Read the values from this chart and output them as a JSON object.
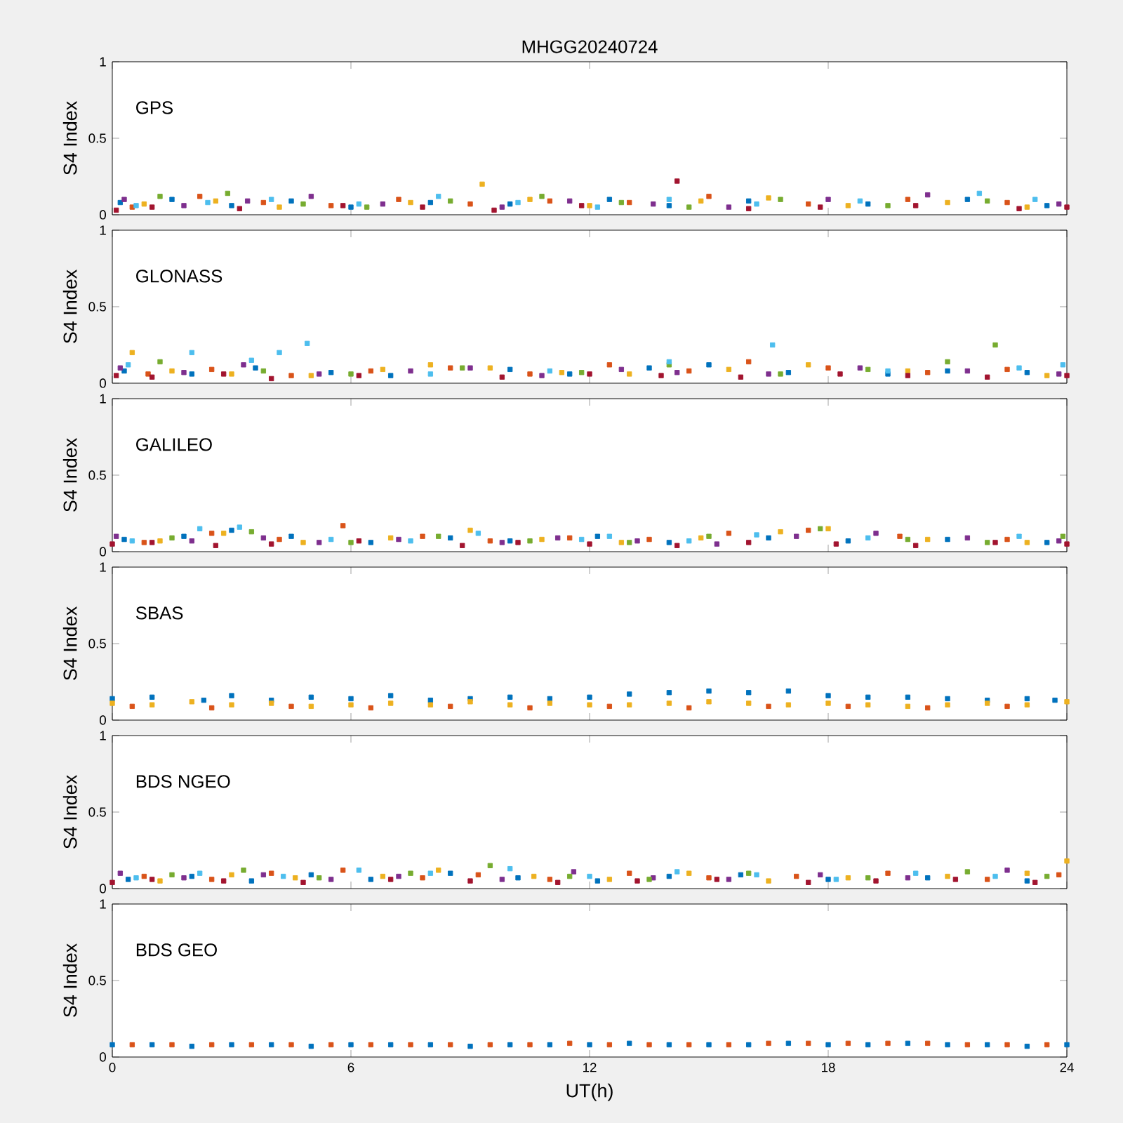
{
  "chart_data": [
    {
      "type": "scatter",
      "title": "MHGG20240724",
      "annotations": [
        "GPS"
      ],
      "ylabel": "S4 Index",
      "xlim": [
        0,
        24
      ],
      "ylim": [
        0,
        1
      ],
      "xticks": [
        0,
        6,
        12,
        18,
        24
      ],
      "yticks": [
        0,
        0.5,
        1
      ],
      "tick_labels": "y",
      "marker": "square",
      "series": [
        {
          "color": "#0072bd",
          "x": [
            0.2,
            1.5,
            3,
            4.5,
            6,
            8,
            10,
            12.5,
            14,
            16,
            19,
            21.5,
            23.5
          ],
          "values": [
            0.08,
            0.1,
            0.06,
            0.09,
            0.05,
            0.08,
            0.07,
            0.1,
            0.06,
            0.09,
            0.07,
            0.1,
            0.06
          ]
        },
        {
          "color": "#d95319",
          "x": [
            0.5,
            2.2,
            3.8,
            5.5,
            7.2,
            9,
            11,
            13,
            15,
            17.5,
            20,
            22.5
          ],
          "values": [
            0.05,
            0.12,
            0.08,
            0.06,
            0.1,
            0.07,
            0.09,
            0.08,
            0.12,
            0.07,
            0.1,
            0.08
          ]
        },
        {
          "color": "#edb120",
          "x": [
            0.8,
            2.6,
            4.2,
            7.5,
            9.3,
            10.5,
            12,
            14.8,
            16.5,
            18.5,
            21,
            23
          ],
          "values": [
            0.07,
            0.09,
            0.05,
            0.08,
            0.2,
            0.1,
            0.06,
            0.09,
            0.11,
            0.06,
            0.08,
            0.05
          ]
        },
        {
          "color": "#7e2f8e",
          "x": [
            0.3,
            1.8,
            3.4,
            5,
            6.8,
            9.8,
            11.5,
            13.6,
            15.5,
            18,
            20.5,
            23.8
          ],
          "values": [
            0.1,
            0.06,
            0.09,
            0.12,
            0.07,
            0.05,
            0.09,
            0.07,
            0.05,
            0.1,
            0.13,
            0.07
          ]
        },
        {
          "color": "#77ac30",
          "x": [
            1.2,
            2.9,
            4.8,
            6.4,
            8.5,
            10.8,
            12.8,
            14.5,
            16.8,
            19.5,
            22
          ],
          "values": [
            0.12,
            0.14,
            0.07,
            0.05,
            0.09,
            0.12,
            0.08,
            0.05,
            0.1,
            0.06,
            0.09
          ]
        },
        {
          "color": "#4dbeee",
          "x": [
            0.6,
            2.4,
            4,
            6.2,
            8.2,
            10.2,
            12.2,
            14,
            16.2,
            18.8,
            21.8,
            23.2
          ],
          "values": [
            0.06,
            0.08,
            0.1,
            0.07,
            0.12,
            0.08,
            0.05,
            0.1,
            0.07,
            0.09,
            0.14,
            0.1
          ]
        },
        {
          "color": "#a2142f",
          "x": [
            0.1,
            1,
            3.2,
            5.8,
            7.8,
            9.6,
            11.8,
            14.2,
            16,
            17.8,
            20.2,
            22.8,
            24
          ],
          "values": [
            0.03,
            0.05,
            0.04,
            0.06,
            0.05,
            0.03,
            0.06,
            0.22,
            0.04,
            0.05,
            0.06,
            0.04,
            0.05
          ]
        }
      ]
    },
    {
      "type": "scatter",
      "annotations": [
        "GLONASS"
      ],
      "ylabel": "S4 Index",
      "xlim": [
        0,
        24
      ],
      "ylim": [
        0,
        1
      ],
      "xticks": [
        0,
        6,
        12,
        18,
        24
      ],
      "yticks": [
        0,
        0.5,
        1
      ],
      "tick_labels": "y",
      "marker": "square",
      "series": [
        {
          "color": "#0072bd",
          "x": [
            0.3,
            2,
            3.6,
            5.5,
            7,
            10,
            11.5,
            13.5,
            15,
            17,
            19.5,
            21,
            23
          ],
          "values": [
            0.08,
            0.06,
            0.1,
            0.07,
            0.05,
            0.09,
            0.06,
            0.1,
            0.12,
            0.07,
            0.06,
            0.08,
            0.07
          ]
        },
        {
          "color": "#d95319",
          "x": [
            0.9,
            2.5,
            4.5,
            6.5,
            8.5,
            10.5,
            12.5,
            14.5,
            16,
            18,
            20.5,
            22.5
          ],
          "values": [
            0.06,
            0.09,
            0.05,
            0.08,
            0.1,
            0.06,
            0.12,
            0.08,
            0.14,
            0.1,
            0.07,
            0.09
          ]
        },
        {
          "color": "#edb120",
          "x": [
            0.5,
            1.5,
            3,
            5,
            6.8,
            8,
            9.5,
            11.3,
            13,
            15.5,
            17.5,
            20,
            23.5
          ],
          "values": [
            0.2,
            0.08,
            0.06,
            0.05,
            0.09,
            0.12,
            0.1,
            0.07,
            0.06,
            0.09,
            0.12,
            0.08,
            0.05
          ]
        },
        {
          "color": "#7e2f8e",
          "x": [
            0.2,
            1.8,
            3.3,
            5.2,
            7.5,
            9,
            10.8,
            12.8,
            14.2,
            16.5,
            18.8,
            21.5,
            23.8
          ],
          "values": [
            0.1,
            0.07,
            0.12,
            0.06,
            0.08,
            0.1,
            0.05,
            0.09,
            0.07,
            0.06,
            0.1,
            0.08,
            0.06
          ]
        },
        {
          "color": "#77ac30",
          "x": [
            1.2,
            3.8,
            6,
            8.8,
            11.8,
            14,
            16.8,
            19,
            21,
            22.2
          ],
          "values": [
            0.14,
            0.08,
            0.06,
            0.1,
            0.07,
            0.12,
            0.06,
            0.09,
            0.14,
            0.25
          ]
        },
        {
          "color": "#4dbeee",
          "x": [
            0.4,
            2,
            3.5,
            4.2,
            4.9,
            8,
            11,
            14,
            16.6,
            19.5,
            22.8,
            23.9
          ],
          "values": [
            0.12,
            0.2,
            0.15,
            0.2,
            0.26,
            0.06,
            0.08,
            0.14,
            0.25,
            0.08,
            0.1,
            0.12
          ]
        },
        {
          "color": "#a2142f",
          "x": [
            0.1,
            1,
            2.8,
            4,
            6.2,
            9.8,
            12,
            13.8,
            15.8,
            18.3,
            20,
            22,
            24
          ],
          "values": [
            0.05,
            0.04,
            0.06,
            0.03,
            0.05,
            0.04,
            0.06,
            0.05,
            0.04,
            0.06,
            0.05,
            0.04,
            0.05
          ]
        }
      ]
    },
    {
      "type": "scatter",
      "annotations": [
        "GALILEO"
      ],
      "ylabel": "S4 Index",
      "xlim": [
        0,
        24
      ],
      "ylim": [
        0,
        1
      ],
      "xticks": [
        0,
        6,
        12,
        18,
        24
      ],
      "yticks": [
        0,
        0.5,
        1
      ],
      "tick_labels": "y",
      "marker": "square",
      "series": [
        {
          "color": "#0072bd",
          "x": [
            0.3,
            1.8,
            3,
            4.5,
            6.5,
            8.5,
            10,
            12.2,
            14,
            16.5,
            18.5,
            21,
            23.5
          ],
          "values": [
            0.08,
            0.1,
            0.14,
            0.1,
            0.06,
            0.09,
            0.07,
            0.1,
            0.06,
            0.09,
            0.07,
            0.08,
            0.06
          ]
        },
        {
          "color": "#d95319",
          "x": [
            0.8,
            2.5,
            4.2,
            5.8,
            7.8,
            9.5,
            11.5,
            13.5,
            15.5,
            17.5,
            19.8,
            22.5
          ],
          "values": [
            0.06,
            0.12,
            0.08,
            0.17,
            0.1,
            0.07,
            0.09,
            0.08,
            0.12,
            0.14,
            0.1,
            0.08
          ]
        },
        {
          "color": "#edb120",
          "x": [
            1.2,
            2.8,
            4.8,
            7,
            9,
            10.8,
            12.8,
            14.8,
            16.8,
            18,
            20.5,
            23
          ],
          "values": [
            0.07,
            0.12,
            0.06,
            0.09,
            0.14,
            0.08,
            0.06,
            0.09,
            0.13,
            0.15,
            0.08,
            0.06
          ]
        },
        {
          "color": "#7e2f8e",
          "x": [
            0.1,
            2,
            3.8,
            5.2,
            7.2,
            9.8,
            11.2,
            13.2,
            15.2,
            17.2,
            19.2,
            21.5,
            23.8
          ],
          "values": [
            0.1,
            0.07,
            0.09,
            0.06,
            0.08,
            0.06,
            0.09,
            0.07,
            0.05,
            0.1,
            0.12,
            0.09,
            0.07
          ]
        },
        {
          "color": "#77ac30",
          "x": [
            1.5,
            3.5,
            6,
            8.2,
            10.5,
            13,
            15,
            17.8,
            20,
            22,
            23.9
          ],
          "values": [
            0.09,
            0.13,
            0.06,
            0.1,
            0.07,
            0.06,
            0.1,
            0.15,
            0.08,
            0.06,
            0.1
          ]
        },
        {
          "color": "#4dbeee",
          "x": [
            0.5,
            2.2,
            3.2,
            5.5,
            7.5,
            9.2,
            11.8,
            12.5,
            14.5,
            16.2,
            19,
            22.8
          ],
          "values": [
            0.07,
            0.15,
            0.16,
            0.08,
            0.07,
            0.12,
            0.08,
            0.1,
            0.07,
            0.11,
            0.09,
            0.1
          ]
        },
        {
          "color": "#a2142f",
          "x": [
            0,
            1,
            2.6,
            4,
            6.2,
            8.8,
            10.2,
            12,
            14.2,
            16,
            18.2,
            20.2,
            22.2,
            24
          ],
          "values": [
            0.05,
            0.06,
            0.04,
            0.05,
            0.07,
            0.04,
            0.06,
            0.05,
            0.04,
            0.06,
            0.05,
            0.04,
            0.06,
            0.05
          ]
        }
      ]
    },
    {
      "type": "scatter",
      "annotations": [
        "SBAS"
      ],
      "ylabel": "S4 Index",
      "xlim": [
        0,
        24
      ],
      "ylim": [
        0,
        1
      ],
      "xticks": [
        0,
        6,
        12,
        18,
        24
      ],
      "yticks": [
        0,
        0.5,
        1
      ],
      "tick_labels": "y",
      "marker": "square",
      "series": [
        {
          "color": "#0072bd",
          "x": [
            0,
            1,
            2.3,
            3,
            4,
            5,
            6,
            7,
            8,
            9,
            10,
            11,
            12,
            13,
            14,
            15,
            16,
            17,
            18,
            19,
            20,
            21,
            22,
            23,
            23.7
          ],
          "values": [
            0.14,
            0.15,
            0.13,
            0.16,
            0.13,
            0.15,
            0.14,
            0.16,
            0.13,
            0.14,
            0.15,
            0.14,
            0.15,
            0.17,
            0.18,
            0.19,
            0.18,
            0.19,
            0.16,
            0.15,
            0.15,
            0.14,
            0.13,
            0.14,
            0.13
          ]
        },
        {
          "color": "#edb120",
          "x": [
            0,
            1,
            2,
            3,
            4,
            5,
            6,
            7,
            8,
            9,
            10,
            11,
            12,
            13,
            14,
            15,
            16,
            17,
            18,
            19,
            20,
            21,
            22,
            23,
            24
          ],
          "values": [
            0.11,
            0.1,
            0.12,
            0.1,
            0.11,
            0.09,
            0.1,
            0.11,
            0.1,
            0.12,
            0.1,
            0.11,
            0.1,
            0.1,
            0.11,
            0.12,
            0.11,
            0.1,
            0.11,
            0.1,
            0.09,
            0.1,
            0.11,
            0.1,
            0.12
          ]
        },
        {
          "color": "#d95319",
          "x": [
            0.5,
            2.5,
            4.5,
            6.5,
            8.5,
            10.5,
            12.5,
            14.5,
            16.5,
            18.5,
            20.5,
            22.5
          ],
          "values": [
            0.09,
            0.08,
            0.09,
            0.08,
            0.09,
            0.08,
            0.09,
            0.08,
            0.09,
            0.09,
            0.08,
            0.09
          ]
        }
      ]
    },
    {
      "type": "scatter",
      "annotations": [
        "BDS NGEO"
      ],
      "ylabel": "S4 Index",
      "xlim": [
        0,
        24
      ],
      "ylim": [
        0,
        1
      ],
      "xticks": [
        0,
        6,
        12,
        18,
        24
      ],
      "yticks": [
        0,
        0.5,
        1
      ],
      "tick_labels": "y",
      "marker": "square",
      "series": [
        {
          "color": "#0072bd",
          "x": [
            0.4,
            2,
            3.5,
            5,
            6.5,
            8.5,
            10.2,
            12.2,
            14,
            15.8,
            18,
            20.5,
            23
          ],
          "values": [
            0.06,
            0.08,
            0.05,
            0.09,
            0.06,
            0.1,
            0.07,
            0.05,
            0.08,
            0.09,
            0.06,
            0.07,
            0.05
          ]
        },
        {
          "color": "#d95319",
          "x": [
            0.8,
            2.5,
            4,
            5.8,
            7.8,
            9.2,
            11,
            13,
            15,
            17.2,
            19.5,
            22,
            23.8
          ],
          "values": [
            0.08,
            0.06,
            0.1,
            0.12,
            0.07,
            0.09,
            0.06,
            0.1,
            0.07,
            0.08,
            0.1,
            0.06,
            0.09
          ]
        },
        {
          "color": "#edb120",
          "x": [
            1.2,
            3,
            4.6,
            6.8,
            8.2,
            10.6,
            12.5,
            14.5,
            16.5,
            18.5,
            21,
            23,
            24
          ],
          "values": [
            0.05,
            0.09,
            0.07,
            0.08,
            0.12,
            0.08,
            0.06,
            0.1,
            0.05,
            0.07,
            0.08,
            0.1,
            0.18
          ]
        },
        {
          "color": "#7e2f8e",
          "x": [
            0.2,
            1.8,
            3.8,
            5.5,
            7.2,
            9.8,
            11.6,
            13.6,
            15.5,
            17.8,
            20,
            22.5
          ],
          "values": [
            0.1,
            0.07,
            0.09,
            0.06,
            0.08,
            0.06,
            0.11,
            0.07,
            0.06,
            0.09,
            0.07,
            0.12
          ]
        },
        {
          "color": "#77ac30",
          "x": [
            1.5,
            3.3,
            5.2,
            7.5,
            9.5,
            11.5,
            13.5,
            16,
            19,
            21.5,
            23.5
          ],
          "values": [
            0.09,
            0.12,
            0.07,
            0.1,
            0.15,
            0.08,
            0.06,
            0.1,
            0.07,
            0.11,
            0.08
          ]
        },
        {
          "color": "#4dbeee",
          "x": [
            0.6,
            2.2,
            4.3,
            6.2,
            8,
            10,
            12,
            14.2,
            16.2,
            18.2,
            20.2,
            22.2
          ],
          "values": [
            0.07,
            0.1,
            0.08,
            0.12,
            0.1,
            0.13,
            0.08,
            0.11,
            0.09,
            0.06,
            0.1,
            0.08
          ]
        },
        {
          "color": "#a2142f",
          "x": [
            0,
            1,
            2.8,
            4.8,
            7,
            9,
            11.2,
            13.2,
            15.2,
            17.5,
            19.2,
            21.2,
            23.2
          ],
          "values": [
            0.04,
            0.06,
            0.05,
            0.04,
            0.06,
            0.05,
            0.04,
            0.05,
            0.06,
            0.04,
            0.05,
            0.06,
            0.04
          ]
        }
      ]
    },
    {
      "type": "scatter",
      "annotations": [
        "BDS GEO"
      ],
      "xlabel": "UT(h)",
      "ylabel": "S4 Index",
      "xlim": [
        0,
        24
      ],
      "ylim": [
        0,
        1
      ],
      "xticks": [
        0,
        6,
        12,
        18,
        24
      ],
      "yticks": [
        0,
        0.5,
        1
      ],
      "marker": "square",
      "series": [
        {
          "color": "#0072bd",
          "x": [
            0,
            1,
            2,
            3,
            4,
            5,
            6,
            7,
            8,
            9,
            10,
            11,
            12,
            13,
            14,
            15,
            16,
            17,
            18,
            19,
            20,
            21,
            22,
            23,
            24
          ],
          "values": [
            0.08,
            0.08,
            0.07,
            0.08,
            0.08,
            0.07,
            0.08,
            0.08,
            0.08,
            0.07,
            0.08,
            0.08,
            0.08,
            0.09,
            0.08,
            0.08,
            0.08,
            0.09,
            0.08,
            0.08,
            0.09,
            0.08,
            0.08,
            0.07,
            0.08
          ]
        },
        {
          "color": "#d95319",
          "x": [
            0.5,
            1.5,
            2.5,
            3.5,
            4.5,
            5.5,
            6.5,
            7.5,
            8.5,
            9.5,
            10.5,
            11.5,
            12.5,
            13.5,
            14.5,
            15.5,
            16.5,
            17.5,
            18.5,
            19.5,
            20.5,
            21.5,
            22.5,
            23.5
          ],
          "values": [
            0.08,
            0.08,
            0.08,
            0.08,
            0.08,
            0.08,
            0.08,
            0.08,
            0.08,
            0.08,
            0.08,
            0.09,
            0.08,
            0.08,
            0.08,
            0.08,
            0.09,
            0.09,
            0.09,
            0.09,
            0.09,
            0.08,
            0.08,
            0.08
          ]
        }
      ]
    }
  ]
}
